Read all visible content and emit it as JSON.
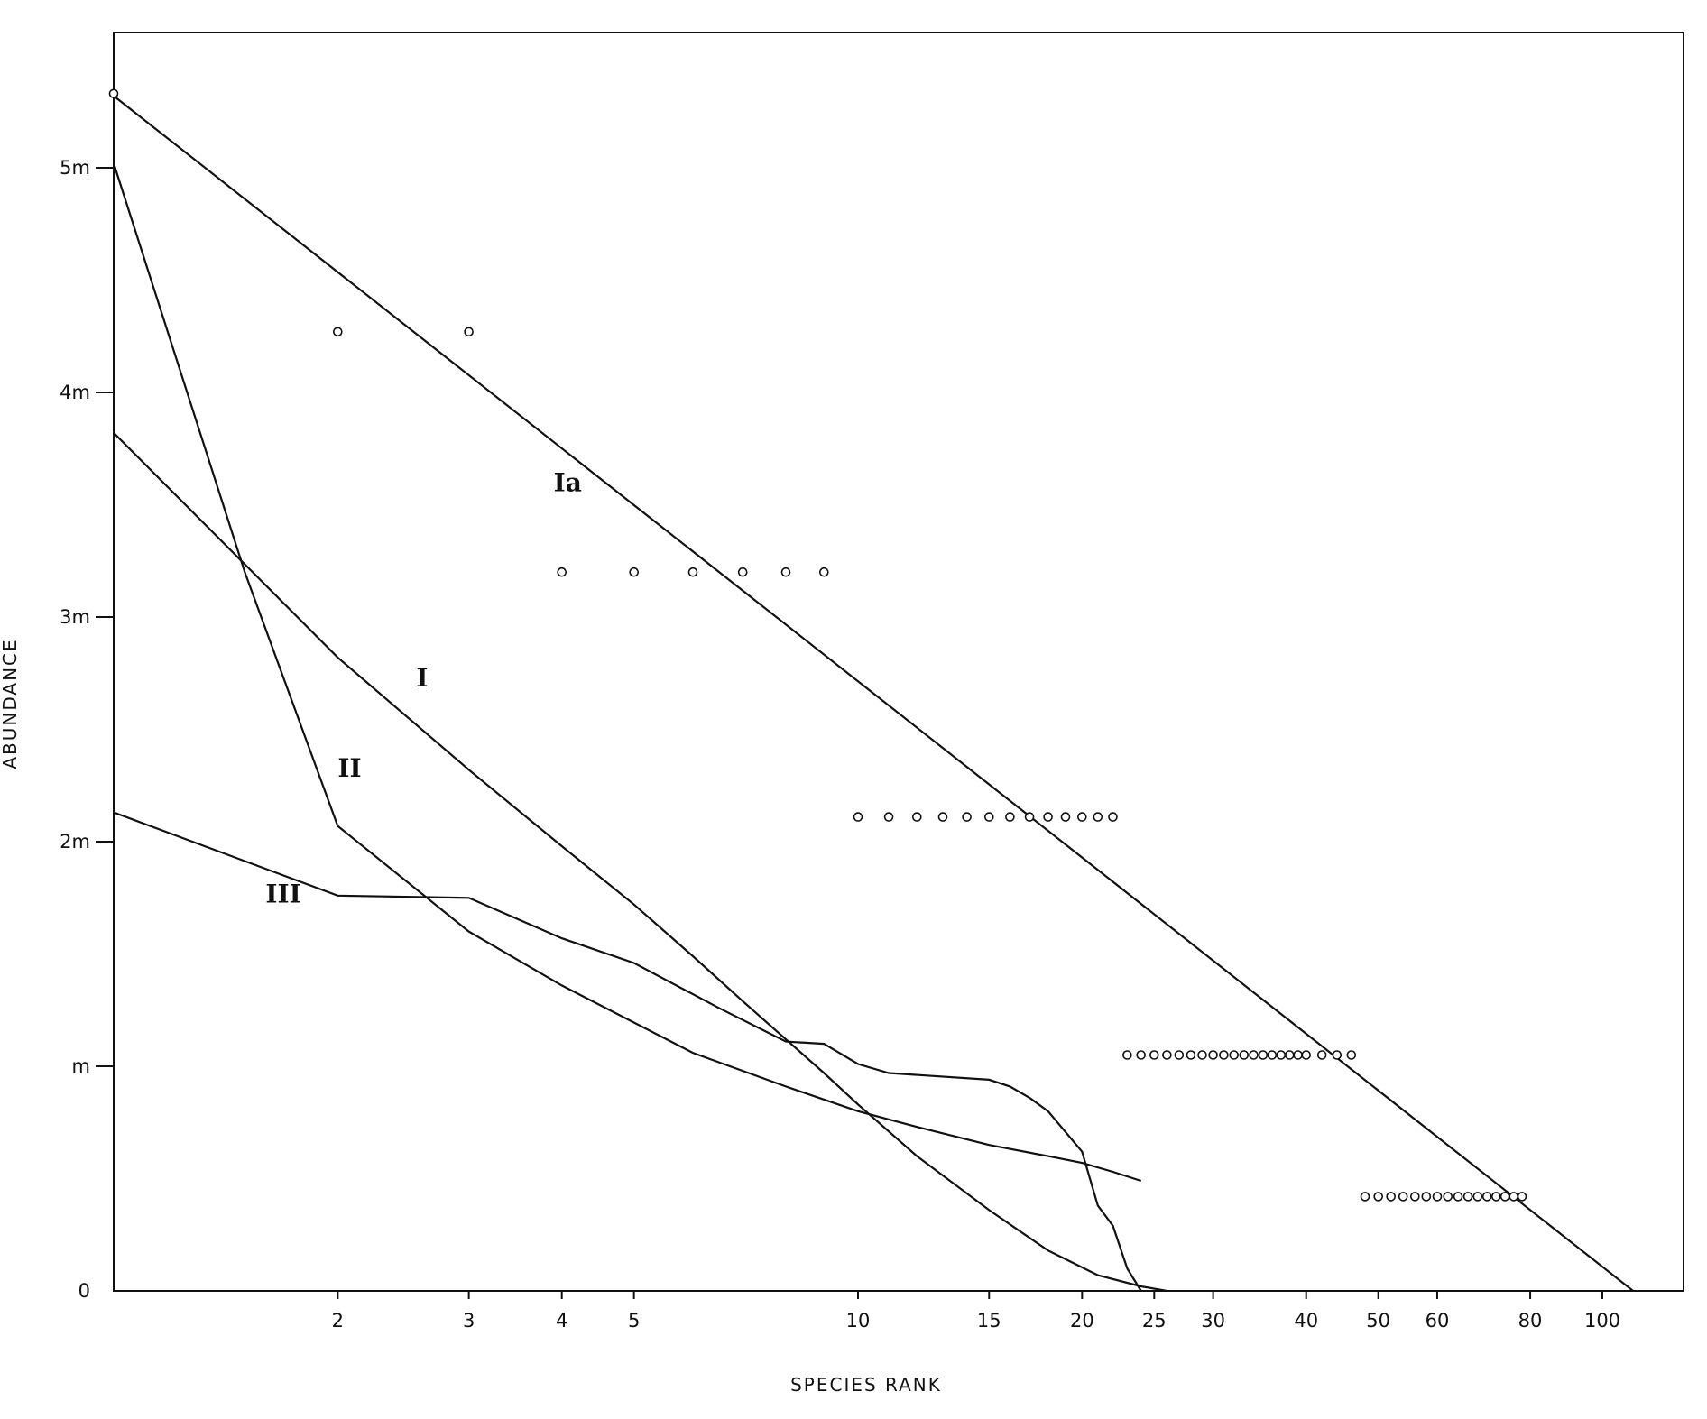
{
  "chart_data": {
    "type": "line",
    "xlabel": "SPECIES   RANK",
    "ylabel": "ABUNDANCE",
    "x_scale": "log",
    "xlim": [
      1,
      115
    ],
    "ylim": [
      0,
      5.5
    ],
    "grid": false,
    "x_tick_labels": [
      {
        "value": 2,
        "label": "2"
      },
      {
        "value": 3,
        "label": "3"
      },
      {
        "value": 4,
        "label": "4"
      },
      {
        "value": 5,
        "label": "5"
      },
      {
        "value": 10,
        "label": "10"
      },
      {
        "value": 15,
        "label": "15"
      },
      {
        "value": 20,
        "label": "20"
      },
      {
        "value": 25,
        "label": "25"
      },
      {
        "value": 30,
        "label": "30"
      },
      {
        "value": 40,
        "label": "40"
      },
      {
        "value": 50,
        "label": "50"
      },
      {
        "value": 60,
        "label": "60"
      },
      {
        "value": 80,
        "label": "80"
      },
      {
        "value": 100,
        "label": "100"
      }
    ],
    "y_tick_labels": [
      {
        "value": 0,
        "label": "0"
      },
      {
        "value": 1,
        "label": "m"
      },
      {
        "value": 2,
        "label": "2m"
      },
      {
        "value": 3,
        "label": "3m"
      },
      {
        "value": 4,
        "label": "4m"
      },
      {
        "value": 5,
        "label": "5m"
      }
    ],
    "series": [
      {
        "name": "Ia",
        "label_at": [
          3.9,
          3.6
        ],
        "x": [
          1,
          110
        ],
        "y": [
          5.32,
          0.0
        ]
      },
      {
        "name": "I",
        "label_at": [
          2.55,
          2.73
        ],
        "x": [
          1,
          2,
          3,
          4,
          5,
          6,
          7,
          8,
          9,
          10,
          12,
          15,
          18,
          21,
          24,
          26
        ],
        "y": [
          3.82,
          2.82,
          2.32,
          1.98,
          1.72,
          1.49,
          1.29,
          1.12,
          0.97,
          0.83,
          0.6,
          0.36,
          0.18,
          0.07,
          0.02,
          0.0
        ]
      },
      {
        "name": "II",
        "label_at": [
          2.0,
          2.33
        ],
        "x": [
          1,
          1.5,
          2,
          3,
          4,
          6,
          8,
          10,
          12,
          15,
          18,
          20,
          22,
          24
        ],
        "y": [
          5.02,
          3.2,
          2.07,
          1.6,
          1.36,
          1.06,
          0.91,
          0.8,
          0.73,
          0.65,
          0.6,
          0.57,
          0.53,
          0.49
        ]
      },
      {
        "name": "III",
        "label_at": [
          1.6,
          1.77
        ],
        "x": [
          1,
          2,
          3,
          4,
          5,
          6.5,
          8,
          9,
          10,
          11,
          15,
          16,
          17,
          18,
          20,
          21,
          22,
          23,
          24
        ],
        "y": [
          2.13,
          1.76,
          1.75,
          1.57,
          1.46,
          1.26,
          1.11,
          1.1,
          1.01,
          0.97,
          0.94,
          0.91,
          0.86,
          0.8,
          0.62,
          0.38,
          0.29,
          0.1,
          0.0
        ]
      }
    ],
    "points": {
      "x": [
        1,
        2,
        3,
        4,
        5,
        6,
        7,
        8,
        9,
        10,
        11,
        12,
        13,
        14,
        15,
        16,
        17,
        18,
        19,
        20,
        21,
        22,
        23,
        24,
        25,
        26,
        27,
        28,
        29,
        30,
        31,
        32,
        33,
        34,
        35,
        36,
        37,
        38,
        39,
        40,
        42,
        44,
        46,
        48,
        50,
        52,
        54,
        56,
        58,
        60,
        62,
        64,
        66,
        68,
        70,
        72,
        74,
        76,
        78
      ],
      "y": [
        5.33,
        4.27,
        4.27,
        3.2,
        3.2,
        3.2,
        3.2,
        3.2,
        3.2,
        2.11,
        2.11,
        2.11,
        2.11,
        2.11,
        2.11,
        2.11,
        2.11,
        2.11,
        2.11,
        2.11,
        2.11,
        2.11,
        1.05,
        1.05,
        1.05,
        1.05,
        1.05,
        1.05,
        1.05,
        1.05,
        1.05,
        1.05,
        1.05,
        1.05,
        1.05,
        1.05,
        1.05,
        1.05,
        1.05,
        1.05,
        1.05,
        1.05,
        1.05,
        0.42,
        0.42,
        0.42,
        0.42,
        0.42,
        0.42,
        0.42,
        0.42,
        0.42,
        0.42,
        0.42,
        0.42,
        0.42,
        0.42,
        0.42,
        0.42
      ]
    }
  }
}
